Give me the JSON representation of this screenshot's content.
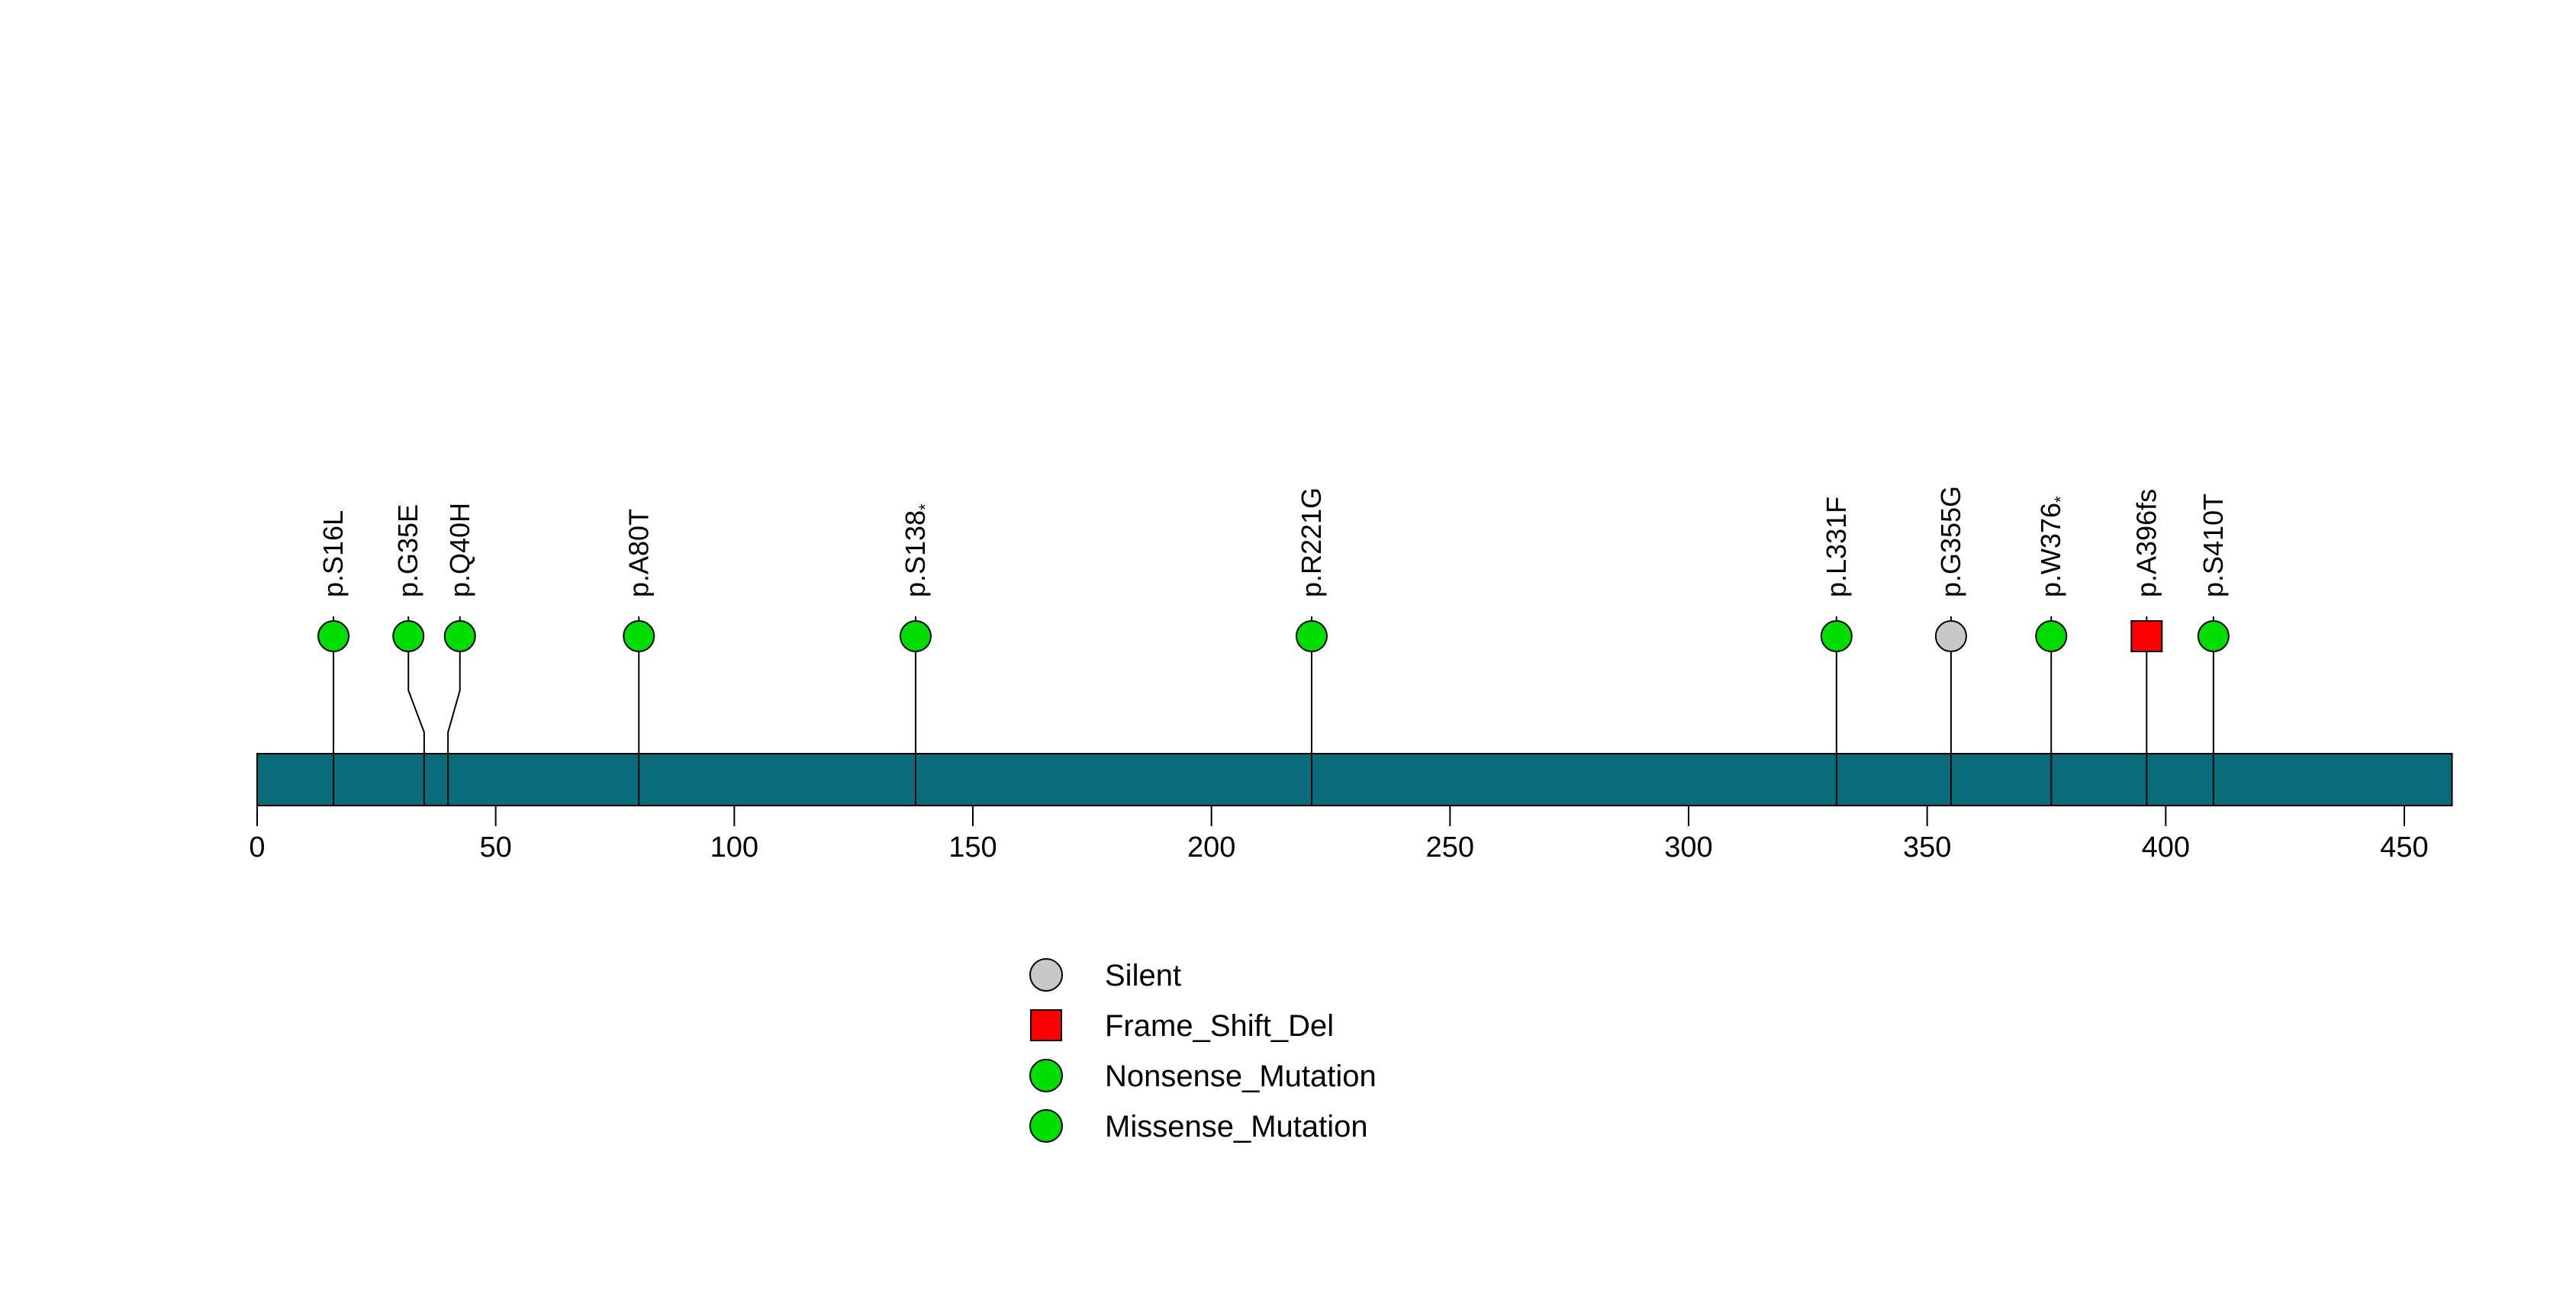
{
  "colors": {
    "background": "#FFFFFF",
    "protein_bar": "#0A6B7B",
    "outline": "#000000",
    "stem": "#000000",
    "text": "#000000",
    "Missense_Mutation": "#00DD00",
    "Nonsense_Mutation": "#00DD00",
    "Silent": "#C8C8C8",
    "Frame_Shift_Del": "#FF0000"
  },
  "chart_data": {
    "type": "lollipop",
    "title": "",
    "xlabel": "",
    "grid": false,
    "legend_position": "bottom-center",
    "axis": {
      "min": 0,
      "max": 450,
      "tick_interval": 50,
      "tick_values": [
        0,
        50,
        100,
        150,
        200,
        250,
        300,
        350,
        400,
        450
      ],
      "tick_labels": [
        "0",
        "50",
        "100",
        "150",
        "200",
        "250",
        "300",
        "350",
        "400",
        "450"
      ]
    },
    "protein": {
      "start": 0,
      "end": 460
    },
    "mutations": [
      {
        "label": "p.S16L",
        "suffix": "",
        "position": 16,
        "type": "Missense_Mutation",
        "shape": "circle"
      },
      {
        "label": "p.G35E",
        "suffix": "",
        "position": 35,
        "display_position": 31.7,
        "type": "Missense_Mutation",
        "shape": "circle"
      },
      {
        "label": "p.Q40H",
        "suffix": "",
        "position": 40,
        "display_position": 42.5,
        "type": "Missense_Mutation",
        "shape": "circle"
      },
      {
        "label": "p.A80T",
        "suffix": "",
        "position": 80,
        "type": "Missense_Mutation",
        "shape": "circle"
      },
      {
        "label": "p.S138",
        "suffix": "*",
        "position": 138,
        "type": "Nonsense_Mutation",
        "shape": "circle"
      },
      {
        "label": "p.R221G",
        "suffix": "",
        "position": 221,
        "type": "Missense_Mutation",
        "shape": "circle"
      },
      {
        "label": "p.L331F",
        "suffix": "",
        "position": 331,
        "type": "Missense_Mutation",
        "shape": "circle"
      },
      {
        "label": "p.G355G",
        "suffix": "",
        "position": 355,
        "type": "Silent",
        "shape": "circle"
      },
      {
        "label": "p.W376",
        "suffix": "*",
        "position": 376,
        "type": "Nonsense_Mutation",
        "shape": "circle"
      },
      {
        "label": "p.A396fs",
        "suffix": "",
        "position": 396,
        "type": "Frame_Shift_Del",
        "shape": "square"
      },
      {
        "label": "p.S410T",
        "suffix": "",
        "position": 410,
        "type": "Missense_Mutation",
        "shape": "circle"
      }
    ],
    "legend": [
      {
        "label": "Silent",
        "type": "Silent",
        "shape": "circle"
      },
      {
        "label": "Frame_Shift_Del",
        "type": "Frame_Shift_Del",
        "shape": "square"
      },
      {
        "label": "Nonsense_Mutation",
        "type": "Nonsense_Mutation",
        "shape": "circle"
      },
      {
        "label": "Missense_Mutation",
        "type": "Missense_Mutation",
        "shape": "circle"
      }
    ]
  }
}
